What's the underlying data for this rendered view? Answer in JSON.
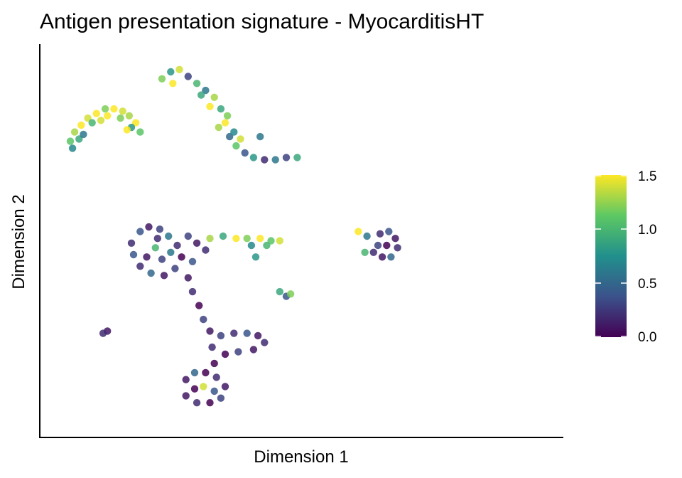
{
  "chart_data": {
    "type": "scatter",
    "title": "Antigen presentation signature - MyocarditisHT",
    "xlabel": "Dimension 1",
    "ylabel": "Dimension 2",
    "x_ticks_shown": false,
    "y_ticks_shown": false,
    "grid": false,
    "colorbar": {
      "palette": "viridis",
      "range": [
        0,
        1.5
      ],
      "tick_values": [
        0.0,
        0.5,
        1.0,
        1.5
      ],
      "tick_labels": [
        "0.0",
        "0.5",
        "1.0",
        "1.5"
      ],
      "stops": [
        "#440154",
        "#3b528b",
        "#21908c",
        "#5dc863",
        "#fde725"
      ],
      "placement": "right"
    },
    "series": [
      {
        "points": [
          [
            -8.6,
            6.8,
            1.1
          ],
          [
            -8.4,
            7.2,
            1.3
          ],
          [
            -8.1,
            7.5,
            1.5
          ],
          [
            -7.8,
            7.8,
            1.4
          ],
          [
            -7.4,
            8.0,
            1.5
          ],
          [
            -7.0,
            8.2,
            1.2
          ],
          [
            -6.6,
            8.2,
            1.5
          ],
          [
            -6.2,
            8.1,
            1.4
          ],
          [
            -5.9,
            7.9,
            1.3
          ],
          [
            -5.6,
            7.6,
            1.5
          ],
          [
            -5.4,
            7.2,
            1.1
          ],
          [
            -8.5,
            6.5,
            0.7
          ],
          [
            -8.2,
            6.9,
            0.9
          ],
          [
            -7.6,
            7.6,
            1.0
          ],
          [
            -6.9,
            7.9,
            1.5
          ],
          [
            -6.3,
            7.8,
            1.2
          ],
          [
            -5.8,
            7.4,
            0.8
          ],
          [
            -7.2,
            7.7,
            1.4
          ],
          [
            -8.0,
            7.1,
            0.6
          ],
          [
            -6.0,
            7.3,
            1.5
          ],
          [
            -4.4,
            9.5,
            1.2
          ],
          [
            -4.0,
            9.8,
            0.8
          ],
          [
            -3.6,
            9.9,
            1.4
          ],
          [
            -3.2,
            9.6,
            0.3
          ],
          [
            -2.8,
            9.3,
            1.0
          ],
          [
            -2.4,
            9.0,
            0.6
          ],
          [
            -2.0,
            8.7,
            1.3
          ],
          [
            -1.7,
            8.2,
            0.9
          ],
          [
            -1.5,
            7.6,
            1.5
          ],
          [
            -1.3,
            7.0,
            0.5
          ],
          [
            -1.0,
            6.6,
            1.1
          ],
          [
            -0.6,
            6.3,
            0.4
          ],
          [
            -0.2,
            6.1,
            0.8
          ],
          [
            0.3,
            6.0,
            0.2
          ],
          [
            0.8,
            6.0,
            0.6
          ],
          [
            1.3,
            6.1,
            0.3
          ],
          [
            1.8,
            6.1,
            0.9
          ],
          [
            -1.8,
            7.4,
            1.3
          ],
          [
            -2.2,
            8.3,
            1.5
          ],
          [
            -1.4,
            7.9,
            1.2
          ],
          [
            -1.1,
            7.2,
            0.7
          ],
          [
            -0.8,
            6.9,
            1.4
          ],
          [
            0.1,
            7.0,
            0.6
          ],
          [
            -3.9,
            9.3,
            1.5
          ],
          [
            -2.6,
            8.8,
            0.9
          ],
          [
            -5.8,
            2.4,
            0.2
          ],
          [
            -5.4,
            2.9,
            0.4
          ],
          [
            -5.0,
            3.1,
            0.1
          ],
          [
            -4.5,
            3.0,
            0.3
          ],
          [
            -4.1,
            2.7,
            0.6
          ],
          [
            -3.7,
            2.3,
            0.2
          ],
          [
            -3.5,
            1.8,
            0.0
          ],
          [
            -3.8,
            1.3,
            0.3
          ],
          [
            -4.3,
            1.0,
            0.1
          ],
          [
            -4.9,
            1.1,
            0.5
          ],
          [
            -5.4,
            1.4,
            0.2
          ],
          [
            -5.7,
            1.9,
            0.4
          ],
          [
            -4.7,
            2.2,
            1.0
          ],
          [
            -4.4,
            1.7,
            0.3
          ],
          [
            -5.1,
            1.8,
            0.1
          ],
          [
            -4.0,
            2.0,
            0.6
          ],
          [
            -4.6,
            2.6,
            0.2
          ],
          [
            -3.2,
            2.7,
            0.3
          ],
          [
            -2.8,
            2.4,
            0.1
          ],
          [
            -2.4,
            2.1,
            0.2
          ],
          [
            -3.0,
            1.6,
            0.4
          ],
          [
            -3.2,
            0.9,
            0.1
          ],
          [
            -3.0,
            0.3,
            0.2
          ],
          [
            -2.7,
            -0.3,
            0.0
          ],
          [
            -2.5,
            -0.9,
            0.3
          ],
          [
            -2.2,
            -1.4,
            0.1
          ],
          [
            -2.1,
            -2.1,
            0.2
          ],
          [
            -2.0,
            -2.8,
            0.0
          ],
          [
            -1.7,
            -1.6,
            0.3
          ],
          [
            -1.1,
            -1.5,
            0.2
          ],
          [
            -0.5,
            -1.5,
            0.4
          ],
          [
            0.0,
            -1.6,
            0.1
          ],
          [
            0.3,
            -1.9,
            0.2
          ],
          [
            -0.2,
            -2.2,
            0.1
          ],
          [
            -0.9,
            -2.3,
            0.3
          ],
          [
            -1.5,
            -2.4,
            0.0
          ],
          [
            -3.3,
            -3.5,
            0.1
          ],
          [
            -2.9,
            -3.2,
            0.5
          ],
          [
            -2.4,
            -3.2,
            0.0
          ],
          [
            -1.9,
            -3.4,
            0.2
          ],
          [
            -1.5,
            -3.8,
            0.1
          ],
          [
            -1.7,
            -4.3,
            0.3
          ],
          [
            -2.2,
            -4.5,
            0.0
          ],
          [
            -2.8,
            -4.5,
            0.2
          ],
          [
            -3.3,
            -4.2,
            0.1
          ],
          [
            -2.5,
            -3.8,
            1.4
          ],
          [
            -2.0,
            -4.0,
            0.4
          ],
          [
            -2.9,
            -3.9,
            0.0
          ],
          [
            -2.2,
            2.6,
            1.3
          ],
          [
            -1.6,
            2.7,
            0.9
          ],
          [
            -1.0,
            2.6,
            1.5
          ],
          [
            -0.5,
            2.6,
            1.2
          ],
          [
            0.1,
            2.6,
            1.5
          ],
          [
            0.6,
            2.5,
            1.1
          ],
          [
            1.0,
            2.5,
            1.4
          ],
          [
            -0.3,
            2.3,
            0.7
          ],
          [
            0.4,
            2.3,
            1.0
          ],
          [
            -0.1,
            1.8,
            0.8
          ],
          [
            1.0,
            0.3,
            0.9
          ],
          [
            1.3,
            0.1,
            0.4
          ],
          [
            1.5,
            0.2,
            1.2
          ],
          [
            5.6,
            2.8,
            0.2
          ],
          [
            6.0,
            2.9,
            0.4
          ],
          [
            6.3,
            2.6,
            0.1
          ],
          [
            6.4,
            2.2,
            0.2
          ],
          [
            6.1,
            1.8,
            0.5
          ],
          [
            5.7,
            1.8,
            0.1
          ],
          [
            5.5,
            2.3,
            0.3
          ],
          [
            5.0,
            2.7,
            0.6
          ],
          [
            4.6,
            2.9,
            1.5
          ],
          [
            4.9,
            2.0,
            1.0
          ],
          [
            5.3,
            2.0,
            0.2
          ],
          [
            5.9,
            2.3,
            0.0
          ],
          [
            -6.9,
            -1.4,
            0.1
          ],
          [
            -7.1,
            -1.5,
            0.2
          ]
        ]
      }
    ]
  }
}
